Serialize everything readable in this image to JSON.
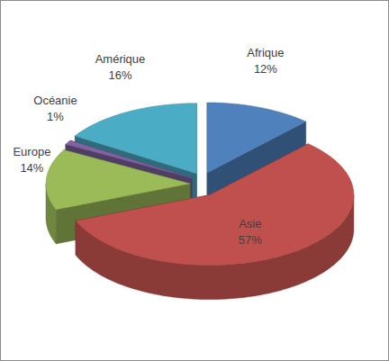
{
  "chart_data": {
    "type": "pie",
    "categories": [
      "Afrique",
      "Asie",
      "Europe",
      "Océanie",
      "Amérique"
    ],
    "values": [
      12,
      57,
      14,
      1,
      16
    ],
    "value_labels": [
      "12%",
      "57%",
      "14%",
      "1%",
      "16%"
    ],
    "colors": [
      "#4f81bd",
      "#c0504d",
      "#9bbb59",
      "#8064a2",
      "#4bacc6"
    ],
    "data_labels": true
  }
}
